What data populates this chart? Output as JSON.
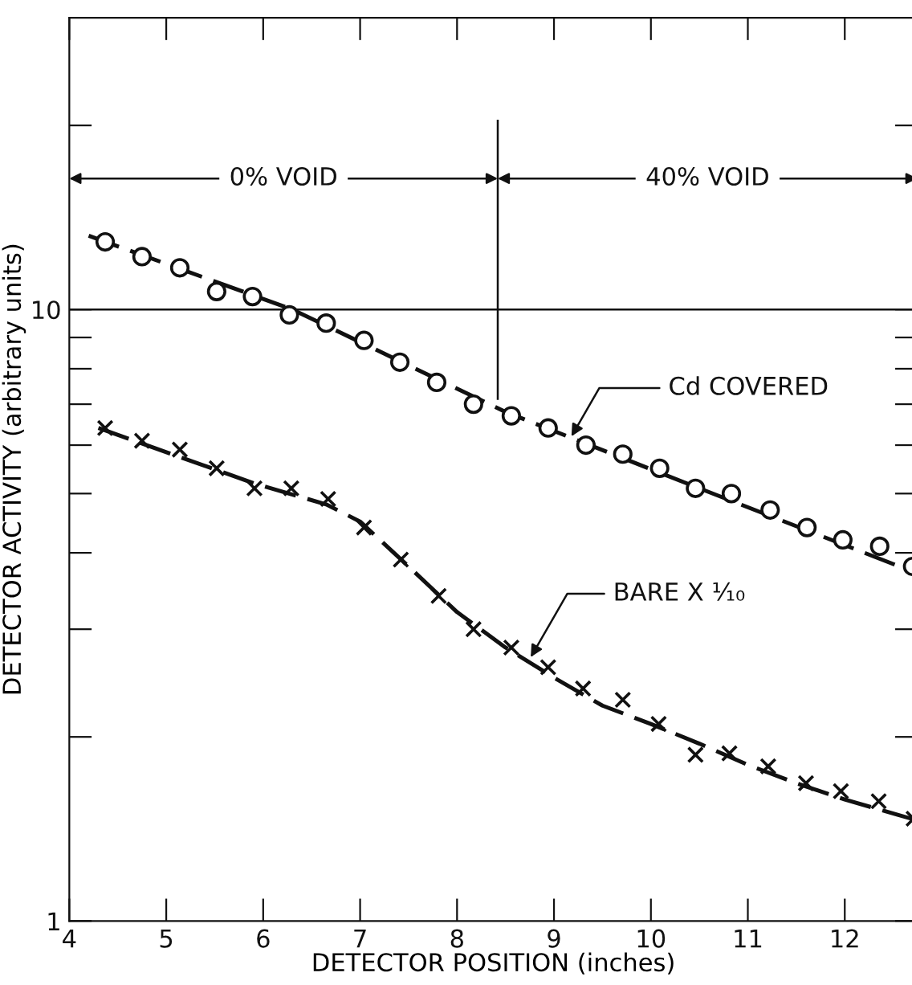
{
  "chart_data": {
    "type": "scatter",
    "xlabel": "DETECTOR POSITION (inches)",
    "ylabel": "DETECTOR ACTIVITY (arbitrary units)",
    "log": "y",
    "xlim": [
      4,
      12.75
    ],
    "ylim": [
      1,
      30
    ],
    "xticks": [
      4,
      5,
      6,
      7,
      8,
      9,
      10,
      11,
      12
    ],
    "yticks": [
      1,
      {
        "value": 2,
        "label": null
      },
      {
        "value": 3,
        "label": null
      },
      {
        "value": 4,
        "label": null
      },
      {
        "value": 5,
        "label": null
      },
      {
        "value": 6,
        "label": null
      },
      {
        "value": 7,
        "label": null
      },
      {
        "value": 8,
        "label": null
      },
      {
        "value": 9,
        "label": null
      },
      10,
      {
        "value": 20,
        "label": null
      }
    ],
    "grid": false,
    "legend": false,
    "series": [
      {
        "marker": "circle",
        "color": "#111111",
        "x": [
          4.37,
          4.75,
          5.14,
          5.52,
          5.89,
          6.27,
          6.65,
          7.04,
          7.41,
          7.79,
          8.17,
          8.56,
          8.94,
          9.33,
          9.71,
          10.09,
          10.46,
          10.83,
          11.23,
          11.61,
          11.98,
          12.36,
          12.7
        ],
        "values": [
          12.9,
          12.2,
          11.7,
          10.7,
          10.5,
          9.8,
          9.5,
          8.9,
          8.2,
          7.6,
          7.0,
          6.7,
          6.4,
          6.0,
          5.8,
          5.5,
          5.1,
          5.0,
          4.7,
          4.4,
          4.2,
          4.1,
          3.8
        ]
      },
      {
        "type": "line",
        "line_style": "dashed",
        "color": "#111111",
        "x": [
          4.2,
          6.3,
          8.5,
          10.5,
          12.75
        ],
        "values": [
          13.2,
          10.0,
          6.8,
          5.1,
          3.7
        ]
      },
      {
        "marker": "cross",
        "color": "#111111",
        "x": [
          4.37,
          4.75,
          5.14,
          5.52,
          5.91,
          6.29,
          6.67,
          7.04,
          7.42,
          7.81,
          8.17,
          8.56,
          8.94,
          9.3,
          9.71,
          10.08,
          10.46,
          10.81,
          11.21,
          11.6,
          11.96,
          12.35,
          12.71
        ],
        "values": [
          6.4,
          6.1,
          5.9,
          5.5,
          5.1,
          5.1,
          4.9,
          4.4,
          3.9,
          3.4,
          3.0,
          2.8,
          2.6,
          2.4,
          2.3,
          2.1,
          1.87,
          1.88,
          1.79,
          1.68,
          1.63,
          1.57,
          1.47
        ]
      },
      {
        "type": "line",
        "line_style": "dashed",
        "color": "#111111",
        "x": [
          4.3,
          5.9,
          6.65,
          7.0,
          7.5,
          8.0,
          8.5,
          9.0,
          9.5,
          10.0,
          10.5,
          11.0,
          11.5,
          12.0,
          12.75
        ],
        "values": [
          6.4,
          5.2,
          4.8,
          4.5,
          3.8,
          3.2,
          2.8,
          2.5,
          2.25,
          2.1,
          1.95,
          1.8,
          1.68,
          1.58,
          1.46
        ]
      }
    ],
    "ref_lines": [
      {
        "axis": "x",
        "value": 8.42
      },
      {
        "axis": "y",
        "value": 10
      }
    ],
    "annotations": [
      "0% VOID",
      "40% VOID",
      {
        "text": "Cd COVERED",
        "x": 9.18,
        "y": 6.2
      },
      {
        "text": "BARE X ¹⁄₁₀",
        "x": 8.76,
        "y": 2.7
      }
    ]
  }
}
